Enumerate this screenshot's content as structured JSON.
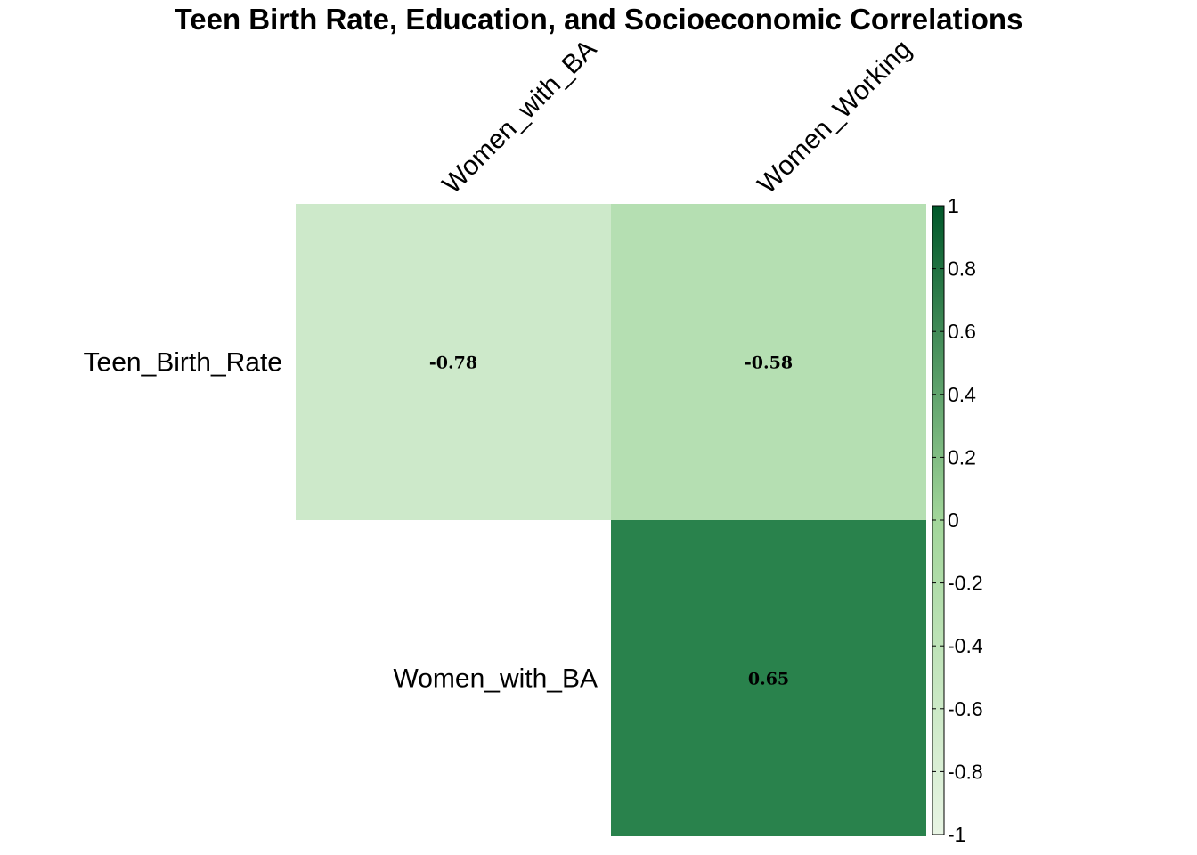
{
  "chart_data": {
    "type": "heatmap",
    "title": "Teen Birth Rate, Education, and Socioeconomic Correlations",
    "subtitle": "",
    "xlabel": "",
    "ylabel": "",
    "row_labels": [
      "Teen_Birth_Rate",
      "Women_with_BA"
    ],
    "col_labels": [
      "Women_with_BA",
      "Women_Working"
    ],
    "cells": [
      {
        "row": 0,
        "col": 0,
        "value": -0.78,
        "label": "-0.78"
      },
      {
        "row": 0,
        "col": 1,
        "value": -0.58,
        "label": "-0.58"
      },
      {
        "row": 1,
        "col": 1,
        "value": 0.65,
        "label": "0.65"
      }
    ],
    "layout_style": "upper-triangle",
    "colorbar": {
      "range": [
        -1,
        1
      ],
      "placement": "right",
      "ticks": [
        1,
        0.8,
        0.6,
        0.4,
        0.2,
        0,
        -0.2,
        -0.4,
        -0.6,
        -0.8,
        -1
      ],
      "tick_labels": [
        "1",
        "0.8",
        "0.6",
        "0.4",
        "0.2",
        "0",
        "-0.2",
        "-0.4",
        "-0.6",
        "-0.8",
        "-1"
      ]
    },
    "colors": {
      "cell_neg_0.78": "#cde9ca",
      "cell_neg_0.58": "#b5dfb2",
      "cell_pos_0.65": "#29824c",
      "scale_low": "#e8f5e4",
      "scale_mid": "#a2d69a",
      "scale_high": "#00582a"
    },
    "grid": false,
    "legend": "colorbar-right"
  }
}
